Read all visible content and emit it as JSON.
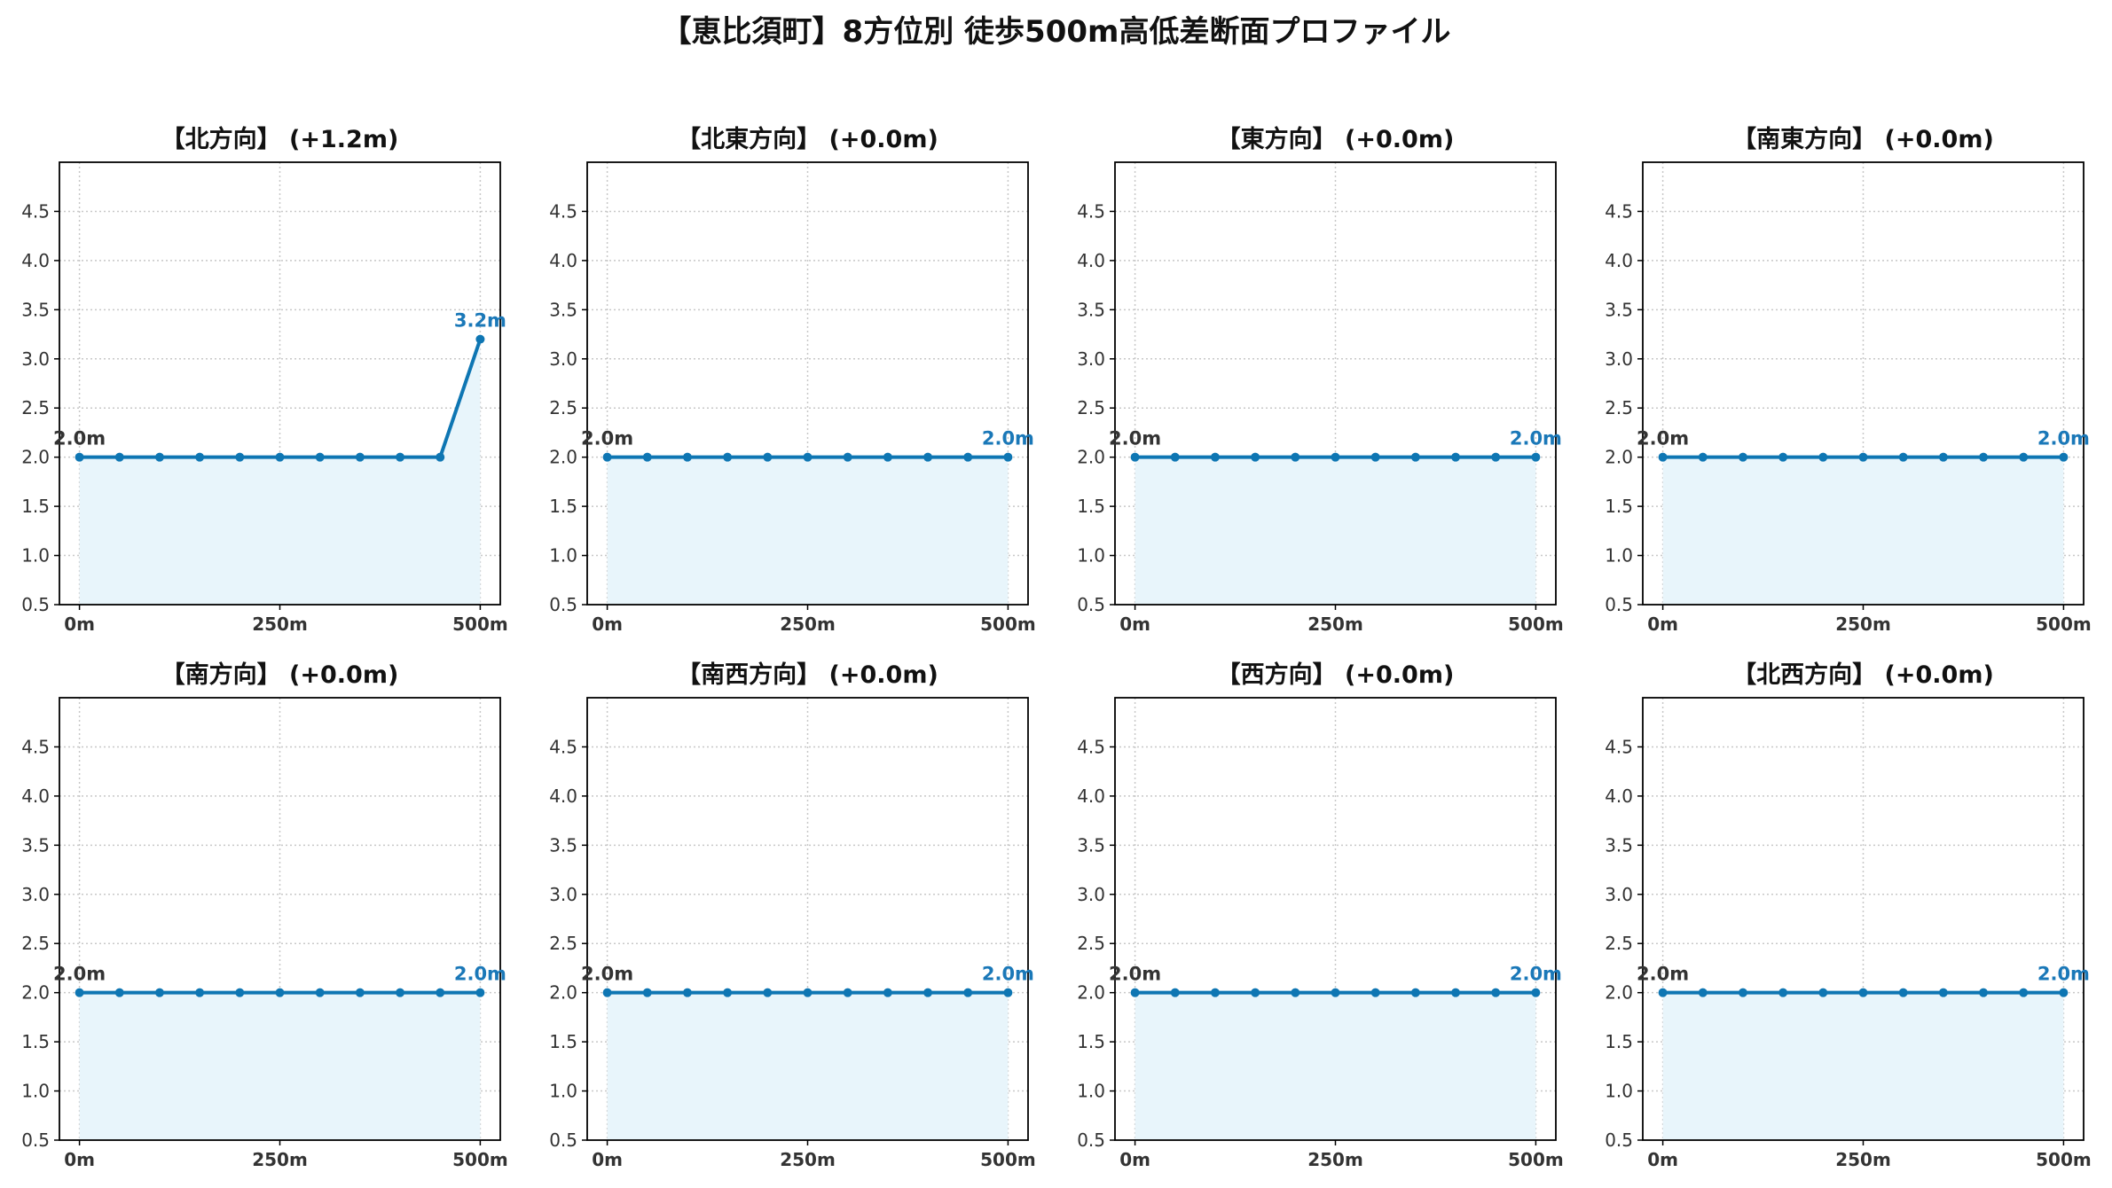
{
  "figure": {
    "title": "【恵比須町】8方位別 徒歩500m高低差断面プロファイル"
  },
  "chart_data": [
    {
      "type": "area",
      "title": "【北方向】 (+1.2m)",
      "x": [
        0,
        50,
        100,
        150,
        200,
        250,
        300,
        350,
        400,
        450,
        500
      ],
      "values": [
        2.0,
        2.0,
        2.0,
        2.0,
        2.0,
        2.0,
        2.0,
        2.0,
        2.0,
        2.0,
        3.2
      ],
      "start_label": "2.0m",
      "end_label": "3.2m",
      "xticks": [
        "0m",
        "250m",
        "500m"
      ],
      "yticks": [
        "1.0",
        "1.5",
        "2.0",
        "2.5",
        "3.0",
        "3.5",
        "4.0",
        "4.5"
      ],
      "ytick_bottom": "0.5",
      "ylim": [
        0.5,
        5.0
      ],
      "grid": true
    },
    {
      "type": "area",
      "title": "【北東方向】 (+0.0m)",
      "x": [
        0,
        50,
        100,
        150,
        200,
        250,
        300,
        350,
        400,
        450,
        500
      ],
      "values": [
        2.0,
        2.0,
        2.0,
        2.0,
        2.0,
        2.0,
        2.0,
        2.0,
        2.0,
        2.0,
        2.0
      ],
      "start_label": "2.0m",
      "end_label": "2.0m",
      "xticks": [
        "0m",
        "250m",
        "500m"
      ],
      "yticks": [
        "1.0",
        "1.5",
        "2.0",
        "2.5",
        "3.0",
        "3.5",
        "4.0",
        "4.5"
      ],
      "ytick_bottom": "0.5",
      "ylim": [
        0.5,
        5.0
      ],
      "grid": true
    },
    {
      "type": "area",
      "title": "【東方向】 (+0.0m)",
      "x": [
        0,
        50,
        100,
        150,
        200,
        250,
        300,
        350,
        400,
        450,
        500
      ],
      "values": [
        2.0,
        2.0,
        2.0,
        2.0,
        2.0,
        2.0,
        2.0,
        2.0,
        2.0,
        2.0,
        2.0
      ],
      "start_label": "2.0m",
      "end_label": "2.0m",
      "xticks": [
        "0m",
        "250m",
        "500m"
      ],
      "yticks": [
        "1.0",
        "1.5",
        "2.0",
        "2.5",
        "3.0",
        "3.5",
        "4.0",
        "4.5"
      ],
      "ytick_bottom": "0.5",
      "ylim": [
        0.5,
        5.0
      ],
      "grid": true
    },
    {
      "type": "area",
      "title": "【南東方向】 (+0.0m)",
      "x": [
        0,
        50,
        100,
        150,
        200,
        250,
        300,
        350,
        400,
        450,
        500
      ],
      "values": [
        2.0,
        2.0,
        2.0,
        2.0,
        2.0,
        2.0,
        2.0,
        2.0,
        2.0,
        2.0,
        2.0
      ],
      "start_label": "2.0m",
      "end_label": "2.0m",
      "xticks": [
        "0m",
        "250m",
        "500m"
      ],
      "yticks": [
        "1.0",
        "1.5",
        "2.0",
        "2.5",
        "3.0",
        "3.5",
        "4.0",
        "4.5"
      ],
      "ytick_bottom": "0.5",
      "ylim": [
        0.5,
        5.0
      ],
      "grid": true
    },
    {
      "type": "area",
      "title": "【南方向】 (+0.0m)",
      "x": [
        0,
        50,
        100,
        150,
        200,
        250,
        300,
        350,
        400,
        450,
        500
      ],
      "values": [
        2.0,
        2.0,
        2.0,
        2.0,
        2.0,
        2.0,
        2.0,
        2.0,
        2.0,
        2.0,
        2.0
      ],
      "start_label": "2.0m",
      "end_label": "2.0m",
      "xticks": [
        "0m",
        "250m",
        "500m"
      ],
      "yticks": [
        "1.0",
        "1.5",
        "2.0",
        "2.5",
        "3.0",
        "3.5",
        "4.0",
        "4.5"
      ],
      "ytick_bottom": "0.5",
      "ylim": [
        0.5,
        5.0
      ],
      "grid": true
    },
    {
      "type": "area",
      "title": "【南西方向】 (+0.0m)",
      "x": [
        0,
        50,
        100,
        150,
        200,
        250,
        300,
        350,
        400,
        450,
        500
      ],
      "values": [
        2.0,
        2.0,
        2.0,
        2.0,
        2.0,
        2.0,
        2.0,
        2.0,
        2.0,
        2.0,
        2.0
      ],
      "start_label": "2.0m",
      "end_label": "2.0m",
      "xticks": [
        "0m",
        "250m",
        "500m"
      ],
      "yticks": [
        "1.0",
        "1.5",
        "2.0",
        "2.5",
        "3.0",
        "3.5",
        "4.0",
        "4.5"
      ],
      "ytick_bottom": "0.5",
      "ylim": [
        0.5,
        5.0
      ],
      "grid": true
    },
    {
      "type": "area",
      "title": "【西方向】 (+0.0m)",
      "x": [
        0,
        50,
        100,
        150,
        200,
        250,
        300,
        350,
        400,
        450,
        500
      ],
      "values": [
        2.0,
        2.0,
        2.0,
        2.0,
        2.0,
        2.0,
        2.0,
        2.0,
        2.0,
        2.0,
        2.0
      ],
      "start_label": "2.0m",
      "end_label": "2.0m",
      "xticks": [
        "0m",
        "250m",
        "500m"
      ],
      "yticks": [
        "1.0",
        "1.5",
        "2.0",
        "2.5",
        "3.0",
        "3.5",
        "4.0",
        "4.5"
      ],
      "ytick_bottom": "0.5",
      "ylim": [
        0.5,
        5.0
      ],
      "grid": true
    },
    {
      "type": "area",
      "title": "【北西方向】 (+0.0m)",
      "x": [
        0,
        50,
        100,
        150,
        200,
        250,
        300,
        350,
        400,
        450,
        500
      ],
      "values": [
        2.0,
        2.0,
        2.0,
        2.0,
        2.0,
        2.0,
        2.0,
        2.0,
        2.0,
        2.0,
        2.0
      ],
      "start_label": "2.0m",
      "end_label": "2.0m",
      "xticks": [
        "0m",
        "250m",
        "500m"
      ],
      "yticks": [
        "1.0",
        "1.5",
        "2.0",
        "2.5",
        "3.0",
        "3.5",
        "4.0",
        "4.5"
      ],
      "ytick_bottom": "0.5",
      "ylim": [
        0.5,
        5.0
      ],
      "grid": true
    }
  ],
  "colors": {
    "line": "#0e76b3",
    "fill": "#e8f5fb",
    "start_label": "#333333",
    "end_label": "#1a78b8",
    "grid": "#c8c8c8",
    "axis": "#000000",
    "tick_label": "#333333"
  }
}
